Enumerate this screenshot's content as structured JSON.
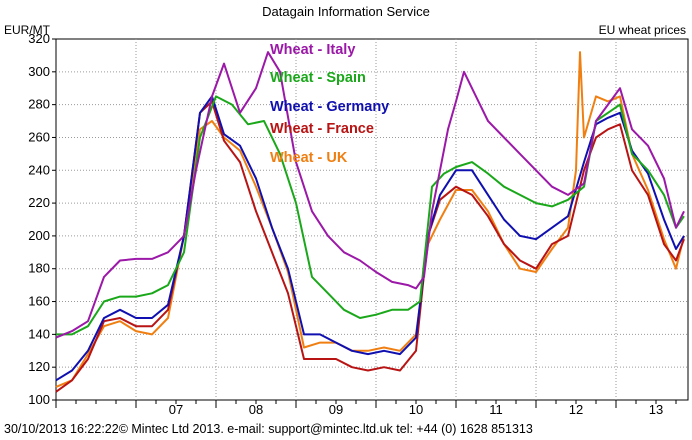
{
  "header": {
    "service": "Datagain Information Service",
    "unit": "EUR/MT",
    "subject": "EU wheat prices"
  },
  "footer": {
    "text": "30/10/2013 16:22:22© Mintec Ltd 2013. e-mail: support@mintec.ltd.uk tel: +44   (0)  1628 851313"
  },
  "chart_data": {
    "type": "line",
    "title": "EU wheat prices",
    "ylabel": "EUR/MT",
    "xlabel": "",
    "ylim": [
      100,
      320
    ],
    "yticks": [
      100,
      120,
      140,
      160,
      180,
      200,
      220,
      240,
      260,
      280,
      300,
      320
    ],
    "xlim": [
      2006.0,
      2013.9
    ],
    "xticks": [
      {
        "label": "07",
        "x": 2007.5
      },
      {
        "label": "08",
        "x": 2008.5
      },
      {
        "label": "09",
        "x": 2009.5
      },
      {
        "label": "10",
        "x": 2010.5
      },
      {
        "label": "11",
        "x": 2011.5
      },
      {
        "label": "12",
        "x": 2012.5
      },
      {
        "label": "13",
        "x": 2013.5
      }
    ],
    "grid": true,
    "legend_position": "top-center",
    "series": [
      {
        "name": "Wheat - Italy",
        "color": "#9b18a8",
        "points": [
          [
            2006.0,
            138
          ],
          [
            2006.2,
            142
          ],
          [
            2006.4,
            148
          ],
          [
            2006.6,
            175
          ],
          [
            2006.8,
            185
          ],
          [
            2007.0,
            186
          ],
          [
            2007.2,
            186
          ],
          [
            2007.4,
            190
          ],
          [
            2007.6,
            200
          ],
          [
            2007.75,
            240
          ],
          [
            2007.95,
            285
          ],
          [
            2008.1,
            305
          ],
          [
            2008.3,
            275
          ],
          [
            2008.5,
            290
          ],
          [
            2008.65,
            312
          ],
          [
            2008.8,
            300
          ],
          [
            2009.0,
            245
          ],
          [
            2009.2,
            215
          ],
          [
            2009.4,
            200
          ],
          [
            2009.6,
            190
          ],
          [
            2009.8,
            185
          ],
          [
            2010.0,
            178
          ],
          [
            2010.2,
            172
          ],
          [
            2010.4,
            170
          ],
          [
            2010.5,
            168
          ],
          [
            2010.6,
            175
          ],
          [
            2010.7,
            215
          ],
          [
            2010.8,
            240
          ],
          [
            2010.9,
            265
          ],
          [
            2011.0,
            282
          ],
          [
            2011.1,
            300
          ],
          [
            2011.25,
            285
          ],
          [
            2011.4,
            270
          ],
          [
            2011.6,
            260
          ],
          [
            2011.8,
            250
          ],
          [
            2012.0,
            240
          ],
          [
            2012.2,
            230
          ],
          [
            2012.4,
            225
          ],
          [
            2012.6,
            232
          ],
          [
            2012.75,
            270
          ],
          [
            2012.9,
            280
          ],
          [
            2013.05,
            290
          ],
          [
            2013.2,
            265
          ],
          [
            2013.4,
            255
          ],
          [
            2013.6,
            235
          ],
          [
            2013.75,
            205
          ],
          [
            2013.85,
            215
          ]
        ]
      },
      {
        "name": "Wheat - Spain",
        "color": "#1aa81a",
        "points": [
          [
            2006.0,
            140
          ],
          [
            2006.2,
            140
          ],
          [
            2006.4,
            145
          ],
          [
            2006.6,
            160
          ],
          [
            2006.8,
            163
          ],
          [
            2007.0,
            163
          ],
          [
            2007.2,
            165
          ],
          [
            2007.4,
            170
          ],
          [
            2007.6,
            190
          ],
          [
            2007.8,
            260
          ],
          [
            2008.0,
            285
          ],
          [
            2008.2,
            280
          ],
          [
            2008.4,
            268
          ],
          [
            2008.6,
            270
          ],
          [
            2008.8,
            250
          ],
          [
            2009.0,
            220
          ],
          [
            2009.2,
            175
          ],
          [
            2009.4,
            165
          ],
          [
            2009.6,
            155
          ],
          [
            2009.8,
            150
          ],
          [
            2010.0,
            152
          ],
          [
            2010.2,
            155
          ],
          [
            2010.4,
            155
          ],
          [
            2010.55,
            160
          ],
          [
            2010.7,
            230
          ],
          [
            2010.85,
            238
          ],
          [
            2011.0,
            242
          ],
          [
            2011.2,
            245
          ],
          [
            2011.4,
            238
          ],
          [
            2011.6,
            230
          ],
          [
            2011.8,
            225
          ],
          [
            2012.0,
            220
          ],
          [
            2012.2,
            218
          ],
          [
            2012.4,
            222
          ],
          [
            2012.6,
            230
          ],
          [
            2012.75,
            270
          ],
          [
            2012.9,
            275
          ],
          [
            2013.05,
            280
          ],
          [
            2013.2,
            250
          ],
          [
            2013.4,
            240
          ],
          [
            2013.6,
            225
          ],
          [
            2013.75,
            205
          ],
          [
            2013.85,
            212
          ]
        ]
      },
      {
        "name": "Wheat - Germany",
        "color": "#1010b0",
        "points": [
          [
            2006.0,
            112
          ],
          [
            2006.2,
            118
          ],
          [
            2006.4,
            130
          ],
          [
            2006.6,
            150
          ],
          [
            2006.8,
            155
          ],
          [
            2007.0,
            150
          ],
          [
            2007.2,
            150
          ],
          [
            2007.4,
            158
          ],
          [
            2007.6,
            200
          ],
          [
            2007.8,
            275
          ],
          [
            2007.95,
            285
          ],
          [
            2008.1,
            262
          ],
          [
            2008.3,
            255
          ],
          [
            2008.5,
            235
          ],
          [
            2008.7,
            205
          ],
          [
            2008.9,
            180
          ],
          [
            2009.1,
            140
          ],
          [
            2009.3,
            140
          ],
          [
            2009.5,
            135
          ],
          [
            2009.7,
            130
          ],
          [
            2009.9,
            128
          ],
          [
            2010.1,
            130
          ],
          [
            2010.3,
            128
          ],
          [
            2010.5,
            138
          ],
          [
            2010.65,
            200
          ],
          [
            2010.8,
            225
          ],
          [
            2011.0,
            240
          ],
          [
            2011.2,
            240
          ],
          [
            2011.4,
            225
          ],
          [
            2011.6,
            210
          ],
          [
            2011.8,
            200
          ],
          [
            2012.0,
            198
          ],
          [
            2012.2,
            205
          ],
          [
            2012.4,
            212
          ],
          [
            2012.6,
            245
          ],
          [
            2012.75,
            268
          ],
          [
            2012.9,
            272
          ],
          [
            2013.05,
            275
          ],
          [
            2013.2,
            252
          ],
          [
            2013.4,
            238
          ],
          [
            2013.6,
            210
          ],
          [
            2013.75,
            192
          ],
          [
            2013.85,
            200
          ]
        ]
      },
      {
        "name": "Wheat - France",
        "color": "#b81414",
        "points": [
          [
            2006.0,
            105
          ],
          [
            2006.2,
            112
          ],
          [
            2006.4,
            125
          ],
          [
            2006.6,
            148
          ],
          [
            2006.8,
            150
          ],
          [
            2007.0,
            145
          ],
          [
            2007.2,
            145
          ],
          [
            2007.4,
            155
          ],
          [
            2007.6,
            200
          ],
          [
            2007.8,
            275
          ],
          [
            2007.95,
            282
          ],
          [
            2008.1,
            258
          ],
          [
            2008.3,
            245
          ],
          [
            2008.5,
            215
          ],
          [
            2008.7,
            190
          ],
          [
            2008.9,
            165
          ],
          [
            2009.1,
            125
          ],
          [
            2009.3,
            125
          ],
          [
            2009.5,
            125
          ],
          [
            2009.7,
            120
          ],
          [
            2009.9,
            118
          ],
          [
            2010.1,
            120
          ],
          [
            2010.3,
            118
          ],
          [
            2010.5,
            130
          ],
          [
            2010.65,
            200
          ],
          [
            2010.8,
            222
          ],
          [
            2011.0,
            230
          ],
          [
            2011.2,
            225
          ],
          [
            2011.4,
            212
          ],
          [
            2011.6,
            195
          ],
          [
            2011.8,
            185
          ],
          [
            2012.0,
            180
          ],
          [
            2012.2,
            195
          ],
          [
            2012.4,
            200
          ],
          [
            2012.6,
            240
          ],
          [
            2012.75,
            260
          ],
          [
            2012.9,
            265
          ],
          [
            2013.05,
            268
          ],
          [
            2013.2,
            240
          ],
          [
            2013.4,
            225
          ],
          [
            2013.6,
            195
          ],
          [
            2013.75,
            185
          ],
          [
            2013.85,
            198
          ]
        ]
      },
      {
        "name": "Wheat - UK",
        "color": "#f07f12",
        "points": [
          [
            2006.0,
            108
          ],
          [
            2006.2,
            112
          ],
          [
            2006.4,
            128
          ],
          [
            2006.6,
            145
          ],
          [
            2006.8,
            148
          ],
          [
            2007.0,
            142
          ],
          [
            2007.2,
            140
          ],
          [
            2007.4,
            150
          ],
          [
            2007.6,
            200
          ],
          [
            2007.8,
            265
          ],
          [
            2007.95,
            270
          ],
          [
            2008.1,
            260
          ],
          [
            2008.3,
            252
          ],
          [
            2008.5,
            230
          ],
          [
            2008.7,
            205
          ],
          [
            2008.9,
            178
          ],
          [
            2009.1,
            132
          ],
          [
            2009.3,
            135
          ],
          [
            2009.5,
            135
          ],
          [
            2009.7,
            130
          ],
          [
            2009.9,
            130
          ],
          [
            2010.1,
            132
          ],
          [
            2010.3,
            130
          ],
          [
            2010.5,
            140
          ],
          [
            2010.65,
            195
          ],
          [
            2010.8,
            210
          ],
          [
            2011.0,
            228
          ],
          [
            2011.2,
            228
          ],
          [
            2011.4,
            215
          ],
          [
            2011.6,
            195
          ],
          [
            2011.8,
            180
          ],
          [
            2012.0,
            178
          ],
          [
            2012.2,
            192
          ],
          [
            2012.4,
            205
          ],
          [
            2012.5,
            240
          ],
          [
            2012.55,
            312
          ],
          [
            2012.6,
            260
          ],
          [
            2012.75,
            285
          ],
          [
            2012.9,
            282
          ],
          [
            2013.05,
            285
          ],
          [
            2013.2,
            250
          ],
          [
            2013.4,
            228
          ],
          [
            2013.6,
            198
          ],
          [
            2013.75,
            180
          ],
          [
            2013.85,
            200
          ]
        ]
      }
    ]
  }
}
